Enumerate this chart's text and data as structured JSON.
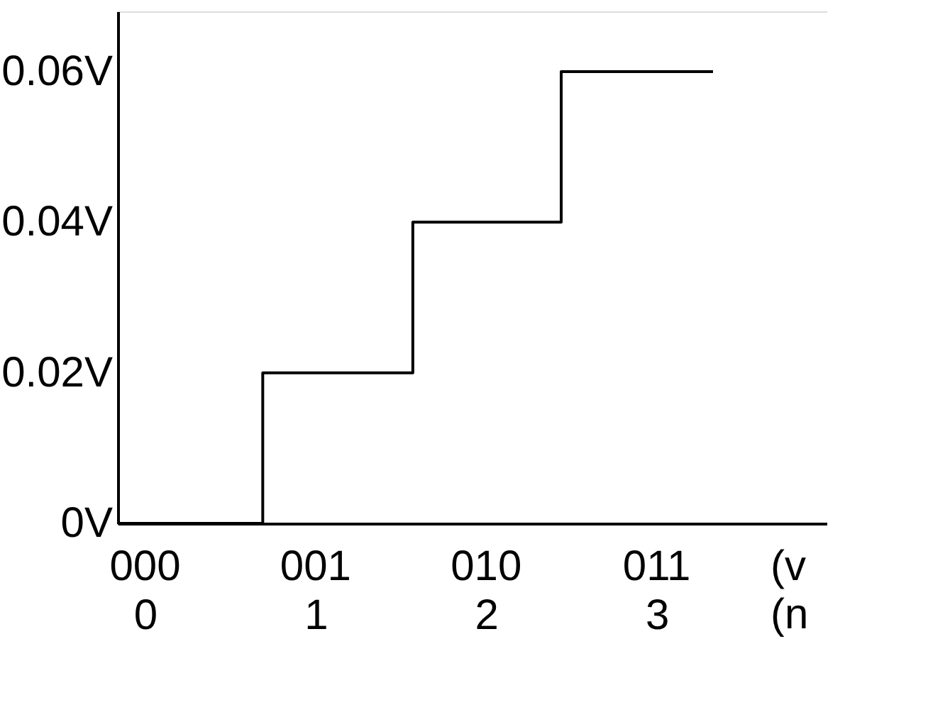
{
  "chart_data": {
    "type": "step",
    "x": [
      -0.16,
      0.69,
      1.57,
      2.44,
      3.33
    ],
    "values": [
      0,
      0.02,
      0.04,
      0.06,
      0.06
    ],
    "color": "#000000",
    "xlim": [
      -0.16,
      4.0
    ],
    "ylim": [
      0,
      0.068
    ],
    "xticks": [
      0,
      1,
      2,
      3
    ],
    "yticks": [
      {
        "value": 0,
        "label": "0V"
      },
      {
        "value": 0.02,
        "label": "0.02V"
      },
      {
        "value": 0.04,
        "label": "0.04V"
      },
      {
        "value": 0.06,
        "label": "0.06V"
      }
    ],
    "annotations": [
      "000",
      "001",
      "010",
      "011",
      "(v",
      "(n"
    ],
    "grid": false,
    "marker": "none",
    "line_style": "solid"
  }
}
